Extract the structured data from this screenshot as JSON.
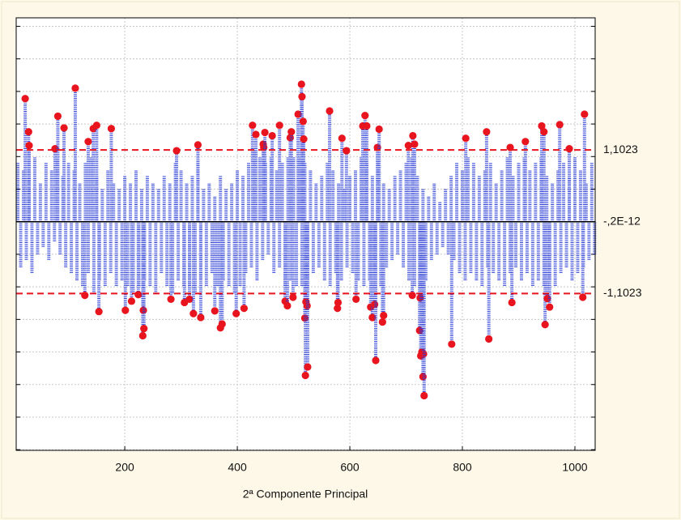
{
  "chart_data": {
    "type": "needle",
    "x_label": "2ª Componente Principal",
    "xlim": [
      7,
      1036
    ],
    "xticks": [
      200,
      400,
      600,
      800,
      1000
    ],
    "ylim": [
      -3.51,
      3.13
    ],
    "yticks": [
      -3.5,
      -3,
      -2.5,
      -2,
      -1.5,
      -1,
      -0.5,
      0,
      0.5,
      1,
      1.5,
      2,
      2.5,
      3
    ],
    "grid": true,
    "limits": [
      {
        "value": 1.1023,
        "label": "1,1023",
        "color": "#e8141e",
        "style": "dashed"
      },
      {
        "value": -2e-12,
        "label": "-,2E-12",
        "color": "#000000",
        "style": "solid"
      },
      {
        "value": -1.1023,
        "label": "-1,1023",
        "color": "#e8141e",
        "style": "dashed"
      }
    ],
    "series": [
      {
        "color": "#2d3fd6",
        "marker": "none",
        "x": [
          10,
          20,
          30,
          40,
          50,
          60,
          70,
          80,
          90,
          100,
          110,
          120,
          130,
          140,
          150,
          160,
          170,
          180,
          190,
          200,
          210,
          220,
          230,
          240,
          250,
          260,
          270,
          280,
          290,
          300,
          310,
          320,
          330,
          340,
          350,
          360,
          370,
          380,
          390,
          400,
          410,
          420,
          430,
          440,
          450,
          460,
          470,
          480,
          490,
          500,
          510,
          520,
          530,
          540,
          550,
          560,
          570,
          580,
          590,
          600,
          610,
          620,
          630,
          640,
          650,
          660,
          670,
          680,
          690,
          700,
          710,
          720,
          730,
          740,
          750,
          760,
          770,
          780,
          790,
          800,
          810,
          820,
          830,
          840,
          850,
          860,
          870,
          880,
          890,
          900,
          910,
          920,
          930,
          940,
          950,
          960,
          970,
          980,
          990,
          1000,
          1010,
          1020,
          1030
        ],
        "values": [
          0.9,
          0.8,
          0.7,
          1.0,
          0.6,
          0.9,
          0.8,
          1.0,
          0.7,
          0.9,
          0.8,
          0.6,
          0.9,
          1.0,
          0.7,
          0.5,
          0.8,
          0.6,
          0.5,
          0.7,
          0.6,
          0.8,
          0.5,
          0.7,
          0.6,
          0.5,
          0.7,
          0.6,
          0.9,
          0.8,
          0.6,
          0.7,
          0.9,
          0.5,
          0.6,
          0.4,
          0.7,
          0.5,
          0.6,
          0.8,
          0.7,
          0.9,
          1.1,
          1.0,
          0.9,
          1.0,
          0.8,
          0.9,
          1.0,
          1.0,
          1.0,
          0.9,
          0.8,
          0.6,
          0.7,
          0.9,
          0.8,
          0.6,
          0.5,
          0.7,
          0.8,
          1.0,
          0.9,
          0.7,
          0.9,
          0.6,
          0.5,
          0.7,
          0.8,
          0.9,
          1.0,
          0.7,
          0.5,
          0.4,
          0.6,
          0.3,
          0.5,
          0.7,
          0.9,
          0.8,
          1.0,
          0.9,
          0.7,
          0.8,
          0.9,
          0.6,
          0.8,
          1.0,
          0.7,
          0.9,
          1.0,
          0.8,
          0.9,
          1.0,
          0.7,
          0.6,
          0.8,
          0.9,
          0.7,
          1.0,
          0.8,
          0.6,
          0.9
        ]
      },
      {
        "color": "#2d3fd6",
        "marker": "none",
        "x": [
          15,
          25,
          35,
          45,
          55,
          65,
          75,
          85,
          95,
          105,
          115,
          125,
          135,
          145,
          155,
          165,
          175,
          185,
          195,
          205,
          215,
          225,
          235,
          245,
          255,
          265,
          275,
          285,
          295,
          305,
          315,
          325,
          335,
          345,
          355,
          365,
          375,
          385,
          395,
          405,
          415,
          425,
          435,
          445,
          455,
          465,
          475,
          485,
          495,
          505,
          515,
          525,
          535,
          545,
          555,
          565,
          575,
          585,
          595,
          605,
          615,
          625,
          635,
          645,
          655,
          665,
          675,
          685,
          695,
          705,
          715,
          725,
          735,
          745,
          755,
          765,
          775,
          785,
          795,
          805,
          815,
          825,
          835,
          845,
          855,
          865,
          875,
          885,
          895,
          905,
          915,
          925,
          935,
          945,
          955,
          965,
          975,
          985,
          995,
          1005,
          1015,
          1025,
          1035
        ],
        "values": [
          -0.7,
          -0.6,
          -0.8,
          -0.5,
          -0.4,
          -0.6,
          -0.3,
          -0.5,
          -0.7,
          -0.8,
          -0.9,
          -1.0,
          -0.8,
          -1.1,
          -0.9,
          -1.0,
          -0.8,
          -1.0,
          -0.9,
          -1.0,
          -1.1,
          -1.0,
          -0.9,
          -1.0,
          -1.1,
          -0.8,
          -1.0,
          -1.1,
          -0.9,
          -1.0,
          -1.0,
          -1.1,
          -0.9,
          -1.0,
          -0.8,
          -1.0,
          -0.9,
          -1.0,
          -1.1,
          -1.0,
          -0.8,
          -0.7,
          -0.9,
          -0.6,
          -0.5,
          -0.8,
          -0.7,
          -1.0,
          -0.9,
          -1.0,
          -1.0,
          -0.9,
          -0.8,
          -0.7,
          -0.9,
          -1.0,
          -0.8,
          -0.9,
          -0.7,
          -0.8,
          -0.9,
          -1.0,
          -0.9,
          -0.8,
          -1.0,
          -0.7,
          -0.6,
          -0.5,
          -0.7,
          -0.9,
          -1.0,
          -1.0,
          -0.9,
          -0.6,
          -0.5,
          -0.4,
          -0.5,
          -0.6,
          -0.8,
          -0.9,
          -0.8,
          -0.9,
          -1.0,
          -0.7,
          -0.8,
          -0.9,
          -1.0,
          -0.8,
          -0.7,
          -0.9,
          -0.8,
          -1.0,
          -0.9,
          -1.0,
          -0.9,
          -1.0,
          -0.8,
          -0.7,
          -0.9,
          -0.8,
          -0.7,
          -0.6,
          -0.5
        ]
      },
      {
        "color": "#e8141e",
        "marker": "dot",
        "x": [
          23,
          29,
          30,
          76,
          81,
          92,
          112,
          129,
          135,
          144,
          150,
          154,
          176,
          201,
          212,
          224,
          232,
          233,
          234,
          282,
          292,
          306,
          315,
          322,
          330,
          335,
          360,
          370,
          373,
          398,
          412,
          427,
          433,
          446,
          447,
          449,
          462,
          475,
          485,
          489,
          494,
          496,
          499,
          508,
          514,
          515,
          517,
          518,
          520,
          521,
          522,
          524,
          525,
          564,
          578,
          579,
          586,
          594,
          611,
          623,
          627,
          630,
          637,
          640,
          644,
          646,
          649,
          652,
          658,
          660,
          704,
          711,
          712,
          715,
          724,
          725,
          726,
          728,
          730,
          731,
          732,
          781,
          806,
          843,
          847,
          885,
          888,
          912,
          941,
          945,
          947,
          951,
          955,
          973,
          990,
          1014,
          1017
        ],
        "values": [
          1.89,
          1.38,
          1.17,
          1.12,
          1.62,
          1.44,
          2.05,
          -1.13,
          1.23,
          1.43,
          1.48,
          -1.38,
          1.43,
          -1.36,
          -1.22,
          -1.12,
          -1.75,
          -1.36,
          -1.64,
          -1.19,
          1.09,
          -1.24,
          -1.19,
          -1.41,
          1.18,
          -1.47,
          -1.37,
          -1.63,
          -1.57,
          -1.41,
          -1.33,
          1.48,
          1.34,
          1.19,
          1.14,
          1.37,
          1.32,
          1.48,
          -1.22,
          -1.29,
          1.29,
          1.38,
          -1.16,
          1.65,
          2.11,
          1.92,
          1.54,
          1.27,
          -1.48,
          -2.36,
          -1.23,
          -1.29,
          -2.23,
          1.7,
          -1.33,
          -1.24,
          1.28,
          1.09,
          -1.19,
          1.47,
          1.63,
          1.47,
          -1.31,
          -1.47,
          -1.27,
          -2.13,
          1.14,
          1.42,
          -1.54,
          -1.44,
          1.17,
          -1.13,
          1.32,
          1.19,
          -1.67,
          -1.17,
          -2.06,
          -2.0,
          -2.38,
          -2.03,
          -2.67,
          -1.88,
          1.28,
          1.38,
          -1.8,
          1.14,
          -1.24,
          1.23,
          1.47,
          1.38,
          -1.58,
          -1.18,
          -1.31,
          1.49,
          1.12,
          -1.16,
          1.65
        ]
      }
    ]
  }
}
